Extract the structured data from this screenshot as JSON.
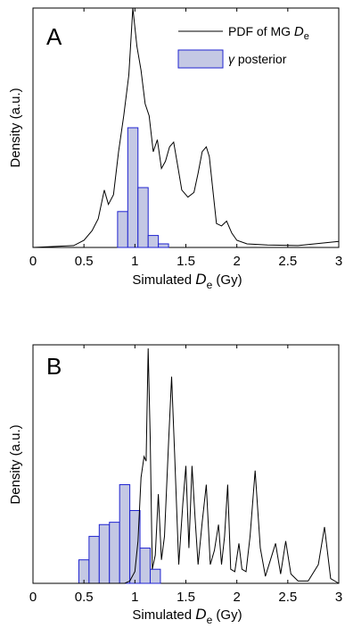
{
  "chart_data": [
    {
      "type": "line",
      "panel_label": "A",
      "xlim": [
        0,
        3
      ],
      "x_ticks": [
        "0",
        "0.5",
        "1",
        "1.5",
        "2",
        "2.5",
        "3"
      ],
      "xlabel_prefix": "Simulated ",
      "xlabel_symbol": "D",
      "xlabel_sub": "e",
      "xlabel_unit": " (Gy)",
      "ylabel": "Density (a.u.)",
      "y_ticks_shown": false,
      "grid": false,
      "legend": {
        "placement": "top-right",
        "line_label_prefix": "PDF of MG ",
        "line_label_symbol": "D",
        "line_label_sub": "e",
        "bar_label_symbol": "γ",
        "bar_label_text": " posterior"
      },
      "pdf_series": {
        "x": [
          0.0,
          0.4,
          0.5,
          0.58,
          0.64,
          0.7,
          0.74,
          0.79,
          0.84,
          0.89,
          0.94,
          0.98,
          1.02,
          1.06,
          1.1,
          1.14,
          1.18,
          1.22,
          1.26,
          1.3,
          1.34,
          1.38,
          1.42,
          1.46,
          1.52,
          1.58,
          1.62,
          1.66,
          1.7,
          1.73,
          1.76,
          1.8,
          1.85,
          1.9,
          1.95,
          2.0,
          2.1,
          2.3,
          2.6,
          3.0
        ],
        "y": [
          0.0,
          0.008,
          0.03,
          0.07,
          0.12,
          0.24,
          0.18,
          0.22,
          0.4,
          0.55,
          0.72,
          1.0,
          0.84,
          0.74,
          0.6,
          0.55,
          0.4,
          0.45,
          0.33,
          0.36,
          0.42,
          0.44,
          0.34,
          0.24,
          0.21,
          0.23,
          0.31,
          0.4,
          0.42,
          0.38,
          0.26,
          0.1,
          0.09,
          0.11,
          0.06,
          0.03,
          0.015,
          0.01,
          0.008,
          0.025
        ]
      },
      "posterior_hist": {
        "bin_edges": [
          0.83,
          0.93,
          1.03,
          1.13,
          1.23,
          1.33
        ],
        "values": [
          0.15,
          0.5,
          0.25,
          0.05,
          0.015
        ]
      },
      "ylim": [
        0,
        1.0
      ]
    },
    {
      "type": "line",
      "panel_label": "B",
      "xlim": [
        0,
        3
      ],
      "x_ticks": [
        "0",
        "0.5",
        "1",
        "1.5",
        "2",
        "2.5",
        "3"
      ],
      "xlabel_prefix": "Simulated ",
      "xlabel_symbol": "D",
      "xlabel_sub": "e",
      "xlabel_unit": " (Gy)",
      "ylabel": "Density (a.u.)",
      "y_ticks_shown": false,
      "grid": false,
      "pdf_series": {
        "x": [
          0.0,
          0.9,
          0.95,
          1.0,
          1.03,
          1.06,
          1.09,
          1.11,
          1.13,
          1.15,
          1.17,
          1.2,
          1.23,
          1.26,
          1.29,
          1.33,
          1.36,
          1.39,
          1.43,
          1.47,
          1.5,
          1.53,
          1.56,
          1.59,
          1.62,
          1.66,
          1.7,
          1.74,
          1.78,
          1.82,
          1.85,
          1.88,
          1.91,
          1.94,
          1.98,
          2.02,
          2.05,
          2.09,
          2.13,
          2.18,
          2.23,
          2.28,
          2.33,
          2.38,
          2.43,
          2.48,
          2.53,
          2.6,
          2.7,
          2.8,
          2.86,
          2.92,
          3.0
        ],
        "y": [
          0.0,
          0.0,
          0.01,
          0.05,
          0.18,
          0.45,
          0.54,
          0.52,
          1.0,
          0.62,
          0.06,
          0.12,
          0.38,
          0.1,
          0.2,
          0.6,
          0.88,
          0.55,
          0.08,
          0.34,
          0.5,
          0.15,
          0.5,
          0.28,
          0.08,
          0.26,
          0.42,
          0.08,
          0.14,
          0.25,
          0.08,
          0.2,
          0.42,
          0.06,
          0.05,
          0.17,
          0.06,
          0.05,
          0.2,
          0.48,
          0.15,
          0.03,
          0.1,
          0.17,
          0.04,
          0.18,
          0.04,
          0.01,
          0.01,
          0.08,
          0.24,
          0.02,
          0.0
        ]
      },
      "posterior_hist": {
        "bin_edges": [
          0.45,
          0.55,
          0.65,
          0.75,
          0.85,
          0.95,
          1.05,
          1.15,
          1.25
        ],
        "values": [
          0.1,
          0.2,
          0.25,
          0.26,
          0.42,
          0.31,
          0.15,
          0.06
        ]
      },
      "ylim": [
        0,
        1.0
      ]
    }
  ]
}
